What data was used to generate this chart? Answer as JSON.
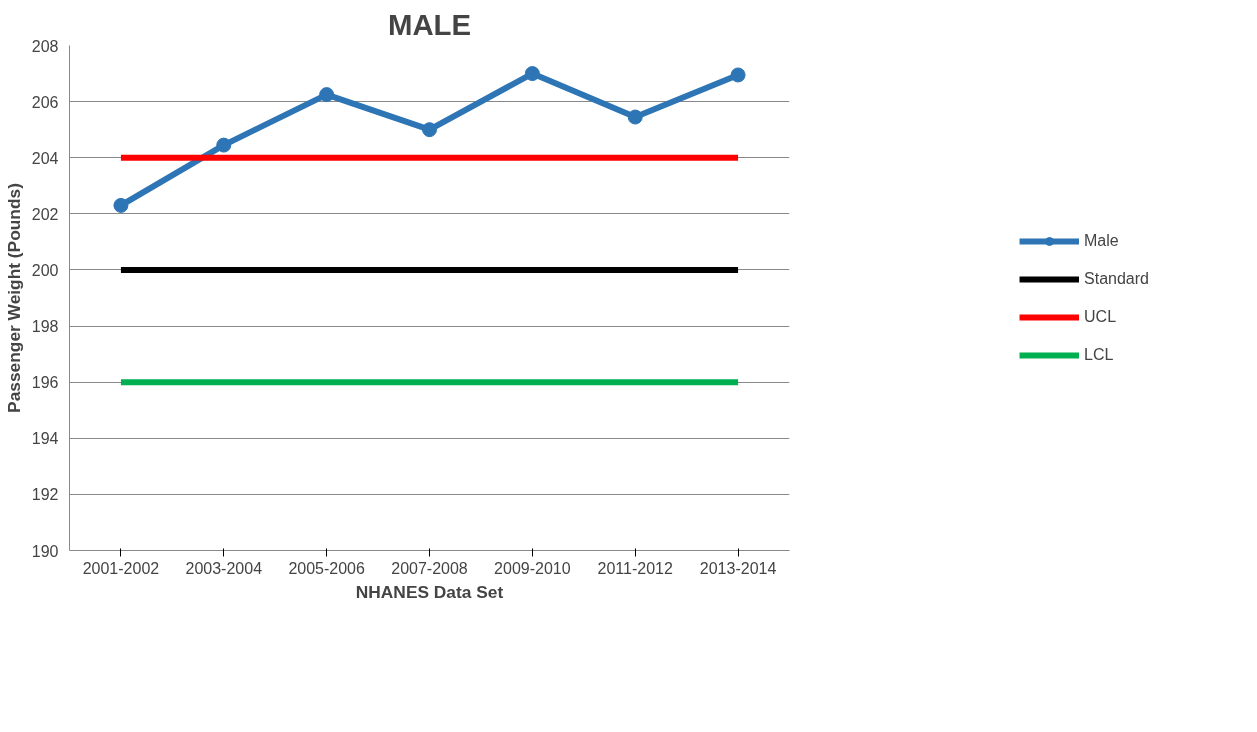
{
  "chart_data": {
    "type": "line",
    "title": "MALE",
    "xlabel": "NHANES Data Set",
    "ylabel": "Passenger Weight (Pounds)",
    "categories": [
      "2001-2002",
      "2003-2004",
      "2005-2006",
      "2007-2008",
      "2009-2010",
      "2011-2012",
      "2013-2014"
    ],
    "series": [
      {
        "name": "Male",
        "color": "#2e75b6",
        "marker": "circle",
        "values": [
          202.3,
          204.45,
          206.25,
          205.0,
          207.0,
          205.45,
          206.95
        ]
      },
      {
        "name": "Standard",
        "color": "#000000",
        "marker": "none",
        "values": [
          200,
          200,
          200,
          200,
          200,
          200,
          200
        ]
      },
      {
        "name": "UCL",
        "color": "#ff0000",
        "marker": "none",
        "values": [
          204,
          204,
          204,
          204,
          204,
          204,
          204
        ]
      },
      {
        "name": "LCL",
        "color": "#00b050",
        "marker": "none",
        "values": [
          196,
          196,
          196,
          196,
          196,
          196,
          196
        ]
      }
    ],
    "ylim": [
      190,
      208
    ],
    "yticks": [
      190,
      192,
      194,
      196,
      198,
      200,
      202,
      204,
      206,
      208
    ],
    "grid": "y",
    "legend": "right",
    "line_style": "solid"
  }
}
